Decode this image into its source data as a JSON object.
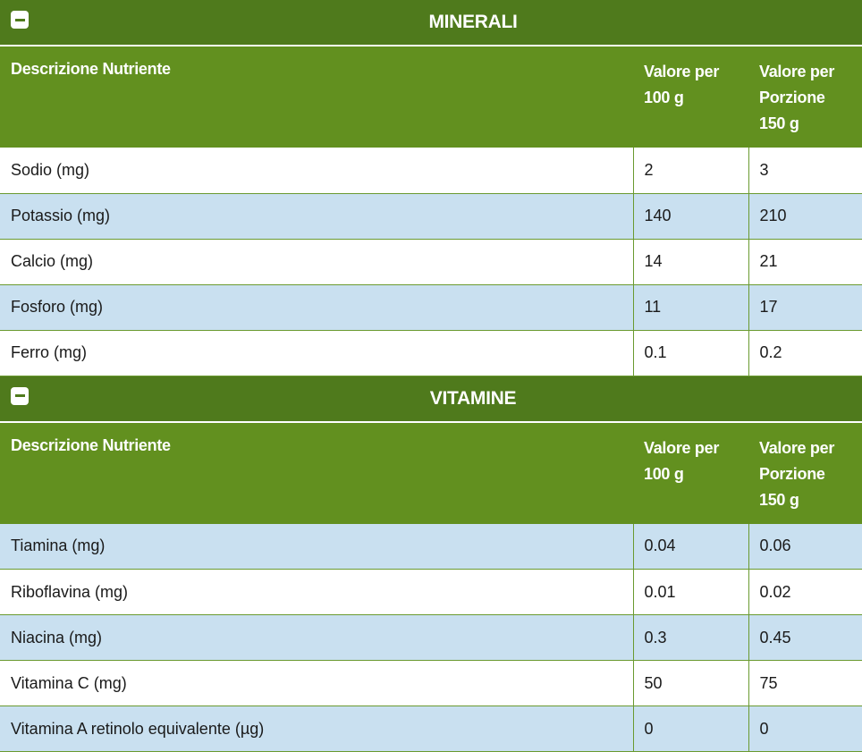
{
  "sections": [
    {
      "title": "MINERALI",
      "columns": [
        "Descrizione Nutriente",
        "Valore per 100 g",
        "Valore per Porzione 150 g"
      ],
      "rows": [
        {
          "name": "Sodio (mg)",
          "per100": "2",
          "perPortion": "3"
        },
        {
          "name": "Potassio (mg)",
          "per100": "140",
          "perPortion": "210"
        },
        {
          "name": "Calcio (mg)",
          "per100": "14",
          "perPortion": "21"
        },
        {
          "name": "Fosforo (mg)",
          "per100": "11",
          "perPortion": "17"
        },
        {
          "name": "Ferro (mg)",
          "per100": "0.1",
          "perPortion": "0.2"
        }
      ]
    },
    {
      "title": "VITAMINE",
      "columns": [
        "Descrizione Nutriente",
        "Valore per 100 g",
        "Valore per Porzione 150 g"
      ],
      "rows": [
        {
          "name": "Tiamina (mg)",
          "per100": "0.04",
          "perPortion": "0.06"
        },
        {
          "name": "Riboflavina (mg)",
          "per100": "0.01",
          "perPortion": "0.02"
        },
        {
          "name": "Niacina (mg)",
          "per100": "0.3",
          "perPortion": "0.45"
        },
        {
          "name": "Vitamina C (mg)",
          "per100": "50",
          "perPortion": "75"
        },
        {
          "name": "Vitamina A retinolo equivalente (µg)",
          "per100": "0",
          "perPortion": "0"
        }
      ]
    }
  ],
  "toggle_icon": "minus-icon",
  "colors": {
    "header_dark": "#4f7a1c",
    "header_light": "#62901f",
    "row_alt": "#c9e0f0"
  }
}
